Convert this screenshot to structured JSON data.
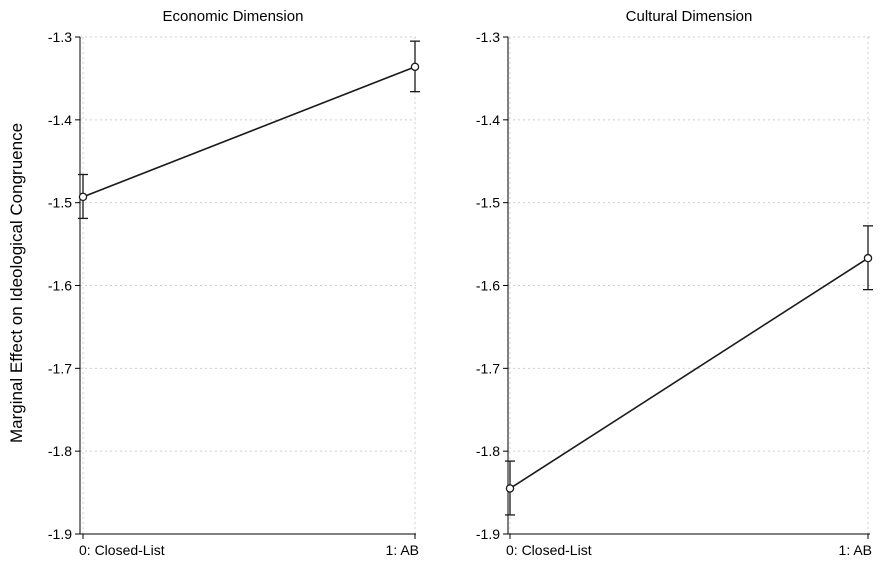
{
  "y_axis_label": "Marginal Effect on Ideological Congruence",
  "chart_data": [
    {
      "type": "line",
      "title": "Economic Dimension",
      "categories": [
        "0: Closed-List",
        "1: AB"
      ],
      "series": [
        {
          "values": [
            -1.493,
            -1.336
          ],
          "ci_lower": [
            -1.519,
            -1.366
          ],
          "ci_upper": [
            -1.466,
            -1.305
          ]
        }
      ],
      "ylim": [
        -1.9,
        -1.3
      ],
      "yticks": [
        -1.3,
        -1.4,
        -1.5,
        -1.6,
        -1.7,
        -1.8,
        -1.9
      ],
      "ytick_labels": [
        "-1.3",
        "-1.4",
        "-1.5",
        "-1.6",
        "-1.7",
        "-1.8",
        "-1.9"
      ],
      "grid": true
    },
    {
      "type": "line",
      "title": "Cultural Dimension",
      "categories": [
        "0: Closed-List",
        "1: AB"
      ],
      "series": [
        {
          "values": [
            -1.845,
            -1.567
          ],
          "ci_lower": [
            -1.877,
            -1.605
          ],
          "ci_upper": [
            -1.812,
            -1.528
          ]
        }
      ],
      "ylim": [
        -1.9,
        -1.3
      ],
      "yticks": [
        -1.3,
        -1.4,
        -1.5,
        -1.6,
        -1.7,
        -1.8,
        -1.9
      ],
      "ytick_labels": [
        "-1.3",
        "-1.4",
        "-1.5",
        "-1.6",
        "-1.7",
        "-1.8",
        "-1.9"
      ],
      "grid": true
    }
  ]
}
